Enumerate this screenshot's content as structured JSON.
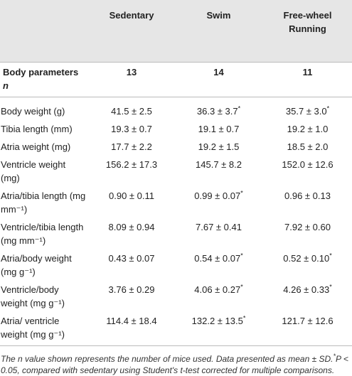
{
  "table": {
    "columns": [
      "Sedentary",
      "Swim",
      "Free-wheel Running"
    ],
    "n_row": {
      "label": "Body parameters",
      "label_italic": "n",
      "values": [
        "13",
        "14",
        "11"
      ]
    },
    "rows": [
      {
        "label": "Body weight (g)",
        "cells": [
          {
            "value": "41.5 ± 2.5"
          },
          {
            "value": "36.3 ± 3.7",
            "sig": "*"
          },
          {
            "value": "35.7 ± 3.0",
            "sig": "*"
          }
        ]
      },
      {
        "label": "Tibia length (mm)",
        "cells": [
          {
            "value": "19.3 ± 0.7"
          },
          {
            "value": "19.1 ± 0.7"
          },
          {
            "value": "19.2 ± 1.0"
          }
        ]
      },
      {
        "label": "Atria weight (mg)",
        "cells": [
          {
            "value": "17.7 ± 2.2"
          },
          {
            "value": "19.2 ± 1.5"
          },
          {
            "value": "18.5 ± 2.0"
          }
        ]
      },
      {
        "label": "Ventricle weight (mg)",
        "cells": [
          {
            "value": "156.2 ± 17.3"
          },
          {
            "value": "145.7 ± 8.2"
          },
          {
            "value": "152.0 ± 12.6"
          }
        ]
      },
      {
        "label": "Atria/tibia length (mg mm⁻¹)",
        "cells": [
          {
            "value": "0.90 ± 0.11"
          },
          {
            "value": "0.99 ± 0.07",
            "sig": "*"
          },
          {
            "value": "0.96 ± 0.13"
          }
        ]
      },
      {
        "label": "Ventricle/tibia length (mg mm⁻¹)",
        "cells": [
          {
            "value": "8.09 ± 0.94"
          },
          {
            "value": "7.67 ± 0.41"
          },
          {
            "value": "7.92 ± 0.60"
          }
        ]
      },
      {
        "label": "Atria/body weight (mg g⁻¹)",
        "cells": [
          {
            "value": "0.43 ± 0.07"
          },
          {
            "value": "0.54 ± 0.07",
            "sig": "*"
          },
          {
            "value": "0.52 ± 0.10",
            "sig": "*"
          }
        ]
      },
      {
        "label": "Ventricle/body weight (mg g⁻¹)",
        "cells": [
          {
            "value": "3.76 ± 0.29"
          },
          {
            "value": "4.06 ± 0.27",
            "sig": "*"
          },
          {
            "value": "4.26 ± 0.33",
            "sig": "*"
          }
        ]
      },
      {
        "label": "Atria/ ventricle weight (mg g⁻¹)",
        "cells": [
          {
            "value": "114.4 ± 18.4"
          },
          {
            "value": "132.2 ± 13.5",
            "sig": "*"
          },
          {
            "value": "121.7 ± 12.6"
          }
        ]
      }
    ]
  },
  "footnote": {
    "text": "The n value shown represents the number of mice used. Data presented as mean ± SD.",
    "sup": "*",
    "text2": "P < 0.05, compared with sedentary using Student's t-test corrected for multiple comparisons."
  }
}
